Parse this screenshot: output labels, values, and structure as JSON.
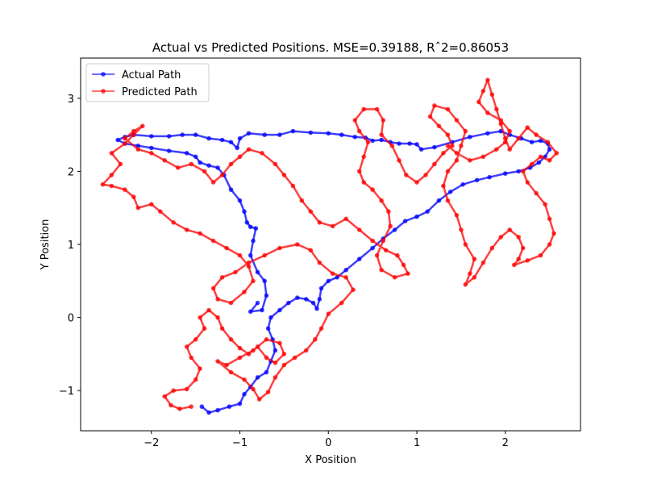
{
  "chart_data": {
    "type": "line",
    "title": "Actual vs Predicted Positions. MSE=0.39188, Rˆ2=0.86053",
    "xlabel": "X Position",
    "ylabel": "Y Position",
    "xlim": [
      -2.8,
      2.85
    ],
    "ylim": [
      -1.55,
      3.55
    ],
    "xticks": [
      -2,
      -1,
      0,
      1,
      2
    ],
    "yticks": [
      -1,
      0,
      1,
      2,
      3
    ],
    "grid": false,
    "legend": "top-left",
    "series": [
      {
        "name": "Actual Path",
        "color": "#0000ff",
        "marker": "circle",
        "points": [
          [
            -1.43,
            -1.22
          ],
          [
            -1.35,
            -1.3
          ],
          [
            -1.25,
            -1.27
          ],
          [
            -1.12,
            -1.22
          ],
          [
            -1.0,
            -1.18
          ],
          [
            -0.95,
            -1.05
          ],
          [
            -0.88,
            -0.95
          ],
          [
            -0.8,
            -0.82
          ],
          [
            -0.7,
            -0.75
          ],
          [
            -0.65,
            -0.6
          ],
          [
            -0.6,
            -0.45
          ],
          [
            -0.63,
            -0.3
          ],
          [
            -0.68,
            -0.15
          ],
          [
            -0.65,
            0.0
          ],
          [
            -0.55,
            0.1
          ],
          [
            -0.45,
            0.2
          ],
          [
            -0.35,
            0.27
          ],
          [
            -0.25,
            0.25
          ],
          [
            -0.17,
            0.2
          ],
          [
            -0.13,
            0.12
          ],
          [
            -0.1,
            0.25
          ],
          [
            -0.08,
            0.4
          ],
          [
            0.0,
            0.5
          ],
          [
            0.1,
            0.55
          ],
          [
            0.2,
            0.65
          ],
          [
            0.35,
            0.8
          ],
          [
            0.5,
            0.95
          ],
          [
            0.62,
            1.08
          ],
          [
            0.75,
            1.2
          ],
          [
            0.87,
            1.32
          ],
          [
            1.0,
            1.38
          ],
          [
            1.12,
            1.45
          ],
          [
            1.25,
            1.6
          ],
          [
            1.38,
            1.72
          ],
          [
            1.52,
            1.82
          ],
          [
            1.68,
            1.88
          ],
          [
            1.82,
            1.92
          ],
          [
            2.0,
            1.97
          ],
          [
            2.15,
            2.0
          ],
          [
            2.28,
            2.05
          ],
          [
            2.38,
            2.12
          ],
          [
            2.45,
            2.2
          ],
          [
            2.5,
            2.3
          ],
          [
            2.48,
            2.38
          ],
          [
            2.4,
            2.42
          ],
          [
            2.3,
            2.4
          ],
          [
            2.18,
            2.45
          ],
          [
            2.05,
            2.5
          ],
          [
            1.95,
            2.55
          ],
          [
            1.8,
            2.52
          ],
          [
            1.6,
            2.47
          ],
          [
            1.4,
            2.4
          ],
          [
            1.2,
            2.33
          ],
          [
            1.05,
            2.3
          ],
          [
            1.0,
            2.37
          ],
          [
            0.92,
            2.38
          ],
          [
            0.8,
            2.38
          ],
          [
            0.7,
            2.4
          ],
          [
            0.6,
            2.43
          ],
          [
            0.5,
            2.42
          ],
          [
            0.42,
            2.46
          ],
          [
            0.3,
            2.47
          ],
          [
            0.15,
            2.5
          ],
          [
            0.0,
            2.52
          ],
          [
            -0.2,
            2.53
          ],
          [
            -0.4,
            2.55
          ],
          [
            -0.55,
            2.5
          ],
          [
            -0.72,
            2.5
          ],
          [
            -0.9,
            2.52
          ],
          [
            -1.0,
            2.45
          ],
          [
            -1.03,
            2.32
          ],
          [
            -1.1,
            2.4
          ],
          [
            -1.2,
            2.43
          ],
          [
            -1.35,
            2.45
          ],
          [
            -1.5,
            2.5
          ],
          [
            -1.65,
            2.5
          ],
          [
            -1.8,
            2.48
          ],
          [
            -2.0,
            2.48
          ],
          [
            -2.2,
            2.5
          ],
          [
            -2.3,
            2.47
          ],
          [
            -2.38,
            2.43
          ],
          [
            -2.3,
            2.38
          ],
          [
            -2.15,
            2.35
          ],
          [
            -2.0,
            2.32
          ],
          [
            -1.8,
            2.28
          ],
          [
            -1.6,
            2.25
          ],
          [
            -1.5,
            2.2
          ],
          [
            -1.45,
            2.12
          ],
          [
            -1.35,
            2.08
          ],
          [
            -1.25,
            2.05
          ],
          [
            -1.18,
            1.95
          ],
          [
            -1.1,
            1.75
          ],
          [
            -1.0,
            1.6
          ],
          [
            -0.95,
            1.45
          ],
          [
            -0.92,
            1.3
          ],
          [
            -0.88,
            1.24
          ],
          [
            -0.82,
            1.22
          ],
          [
            -0.85,
            1.05
          ],
          [
            -0.88,
            0.85
          ],
          [
            -0.8,
            0.62
          ],
          [
            -0.72,
            0.5
          ],
          [
            -0.7,
            0.3
          ],
          [
            -0.75,
            0.1
          ],
          [
            -0.88,
            0.08
          ],
          [
            -0.8,
            0.2
          ]
        ]
      },
      {
        "name": "Predicted Path",
        "color": "#ff0000",
        "marker": "circle",
        "points": [
          [
            -1.55,
            -1.22
          ],
          [
            -1.68,
            -1.25
          ],
          [
            -1.78,
            -1.2
          ],
          [
            -1.85,
            -1.08
          ],
          [
            -1.75,
            -1.0
          ],
          [
            -1.6,
            -0.98
          ],
          [
            -1.5,
            -0.85
          ],
          [
            -1.45,
            -0.7
          ],
          [
            -1.55,
            -0.55
          ],
          [
            -1.6,
            -0.4
          ],
          [
            -1.5,
            -0.3
          ],
          [
            -1.4,
            -0.15
          ],
          [
            -1.45,
            0.0
          ],
          [
            -1.35,
            0.1
          ],
          [
            -1.25,
            0.0
          ],
          [
            -1.2,
            -0.15
          ],
          [
            -1.1,
            -0.3
          ],
          [
            -1.0,
            -0.42
          ],
          [
            -0.9,
            -0.5
          ],
          [
            -0.8,
            -0.4
          ],
          [
            -0.7,
            -0.55
          ],
          [
            -0.6,
            -0.62
          ],
          [
            -0.5,
            -0.5
          ],
          [
            -0.55,
            -0.35
          ],
          [
            -0.7,
            -0.3
          ],
          [
            -0.85,
            -0.45
          ],
          [
            -1.0,
            -0.55
          ],
          [
            -1.15,
            -0.65
          ],
          [
            -1.25,
            -0.6
          ],
          [
            -1.1,
            -0.75
          ],
          [
            -0.95,
            -0.85
          ],
          [
            -0.85,
            -0.98
          ],
          [
            -0.78,
            -1.12
          ],
          [
            -0.68,
            -1.02
          ],
          [
            -0.6,
            -0.82
          ],
          [
            -0.5,
            -0.65
          ],
          [
            -0.38,
            -0.55
          ],
          [
            -0.25,
            -0.45
          ],
          [
            -0.15,
            -0.3
          ],
          [
            -0.08,
            -0.15
          ],
          [
            0.0,
            0.05
          ],
          [
            0.15,
            0.2
          ],
          [
            0.28,
            0.38
          ],
          [
            0.2,
            0.55
          ],
          [
            0.05,
            0.6
          ],
          [
            -0.1,
            0.75
          ],
          [
            -0.2,
            0.92
          ],
          [
            -0.35,
            1.0
          ],
          [
            -0.55,
            0.95
          ],
          [
            -0.72,
            0.85
          ],
          [
            -0.9,
            0.75
          ],
          [
            -1.05,
            0.62
          ],
          [
            -1.2,
            0.55
          ],
          [
            -1.3,
            0.4
          ],
          [
            -1.25,
            0.25
          ],
          [
            -1.1,
            0.2
          ],
          [
            -0.95,
            0.35
          ],
          [
            -0.85,
            0.5
          ],
          [
            -0.9,
            0.7
          ],
          [
            -1.0,
            0.85
          ],
          [
            -1.15,
            0.95
          ],
          [
            -1.3,
            1.05
          ],
          [
            -1.45,
            1.15
          ],
          [
            -1.6,
            1.2
          ],
          [
            -1.75,
            1.3
          ],
          [
            -1.9,
            1.45
          ],
          [
            -2.0,
            1.55
          ],
          [
            -2.15,
            1.5
          ],
          [
            -2.2,
            1.65
          ],
          [
            -2.3,
            1.75
          ],
          [
            -2.45,
            1.8
          ],
          [
            -2.55,
            1.82
          ],
          [
            -2.45,
            1.95
          ],
          [
            -2.35,
            2.1
          ],
          [
            -2.45,
            2.25
          ],
          [
            -2.3,
            2.38
          ],
          [
            -2.2,
            2.5
          ],
          [
            -2.1,
            2.62
          ],
          [
            -2.2,
            2.55
          ],
          [
            -2.3,
            2.45
          ],
          [
            -2.15,
            2.3
          ],
          [
            -2.0,
            2.25
          ],
          [
            -1.85,
            2.15
          ],
          [
            -1.7,
            2.05
          ],
          [
            -1.55,
            2.1
          ],
          [
            -1.4,
            2.0
          ],
          [
            -1.3,
            1.85
          ],
          [
            -1.2,
            1.95
          ],
          [
            -1.1,
            2.1
          ],
          [
            -1.0,
            2.2
          ],
          [
            -0.9,
            2.3
          ],
          [
            -0.75,
            2.25
          ],
          [
            -0.6,
            2.1
          ],
          [
            -0.5,
            1.95
          ],
          [
            -0.4,
            1.8
          ],
          [
            -0.3,
            1.6
          ],
          [
            -0.2,
            1.45
          ],
          [
            -0.1,
            1.3
          ],
          [
            0.05,
            1.25
          ],
          [
            0.2,
            1.35
          ],
          [
            0.35,
            1.2
          ],
          [
            0.5,
            1.05
          ],
          [
            0.65,
            0.92
          ],
          [
            0.78,
            0.85
          ],
          [
            0.85,
            0.72
          ],
          [
            0.9,
            0.6
          ],
          [
            0.75,
            0.55
          ],
          [
            0.6,
            0.65
          ],
          [
            0.55,
            0.85
          ],
          [
            0.62,
            1.05
          ],
          [
            0.7,
            1.25
          ],
          [
            0.68,
            1.45
          ],
          [
            0.6,
            1.6
          ],
          [
            0.5,
            1.75
          ],
          [
            0.4,
            1.85
          ],
          [
            0.35,
            2.0
          ],
          [
            0.4,
            2.2
          ],
          [
            0.45,
            2.4
          ],
          [
            0.35,
            2.55
          ],
          [
            0.3,
            2.7
          ],
          [
            0.4,
            2.85
          ],
          [
            0.55,
            2.85
          ],
          [
            0.62,
            2.7
          ],
          [
            0.6,
            2.5
          ],
          [
            0.72,
            2.35
          ],
          [
            0.8,
            2.15
          ],
          [
            0.88,
            1.95
          ],
          [
            1.0,
            1.85
          ],
          [
            1.1,
            1.95
          ],
          [
            1.2,
            2.1
          ],
          [
            1.3,
            2.25
          ],
          [
            1.4,
            2.35
          ],
          [
            1.35,
            2.5
          ],
          [
            1.25,
            2.62
          ],
          [
            1.15,
            2.75
          ],
          [
            1.2,
            2.9
          ],
          [
            1.35,
            2.85
          ],
          [
            1.45,
            2.7
          ],
          [
            1.55,
            2.55
          ],
          [
            1.5,
            2.35
          ],
          [
            1.45,
            2.15
          ],
          [
            1.35,
            2.0
          ],
          [
            1.3,
            1.8
          ],
          [
            1.35,
            1.6
          ],
          [
            1.45,
            1.4
          ],
          [
            1.5,
            1.2
          ],
          [
            1.55,
            1.0
          ],
          [
            1.65,
            0.8
          ],
          [
            1.6,
            0.6
          ],
          [
            1.55,
            0.45
          ],
          [
            1.65,
            0.55
          ],
          [
            1.75,
            0.75
          ],
          [
            1.85,
            0.95
          ],
          [
            1.95,
            1.1
          ],
          [
            2.05,
            1.2
          ],
          [
            2.15,
            1.1
          ],
          [
            2.2,
            0.95
          ],
          [
            2.15,
            0.8
          ],
          [
            2.1,
            0.72
          ],
          [
            2.25,
            0.78
          ],
          [
            2.4,
            0.85
          ],
          [
            2.5,
            1.0
          ],
          [
            2.55,
            1.15
          ],
          [
            2.5,
            1.35
          ],
          [
            2.45,
            1.55
          ],
          [
            2.35,
            1.7
          ],
          [
            2.25,
            1.85
          ],
          [
            2.2,
            2.0
          ],
          [
            2.3,
            2.1
          ],
          [
            2.4,
            2.2
          ],
          [
            2.5,
            2.15
          ],
          [
            2.58,
            2.25
          ],
          [
            2.48,
            2.4
          ],
          [
            2.35,
            2.5
          ],
          [
            2.25,
            2.6
          ],
          [
            2.15,
            2.45
          ],
          [
            2.05,
            2.3
          ],
          [
            2.0,
            2.45
          ],
          [
            1.95,
            2.65
          ],
          [
            1.9,
            2.85
          ],
          [
            1.85,
            3.05
          ],
          [
            1.8,
            3.25
          ],
          [
            1.75,
            3.1
          ],
          [
            1.7,
            2.95
          ],
          [
            1.8,
            2.8
          ],
          [
            1.95,
            2.7
          ],
          [
            2.05,
            2.55
          ],
          [
            2.0,
            2.4
          ],
          [
            1.9,
            2.3
          ],
          [
            1.75,
            2.2
          ],
          [
            1.6,
            2.15
          ],
          [
            1.45,
            2.25
          ],
          [
            1.35,
            2.35
          ]
        ]
      }
    ]
  }
}
